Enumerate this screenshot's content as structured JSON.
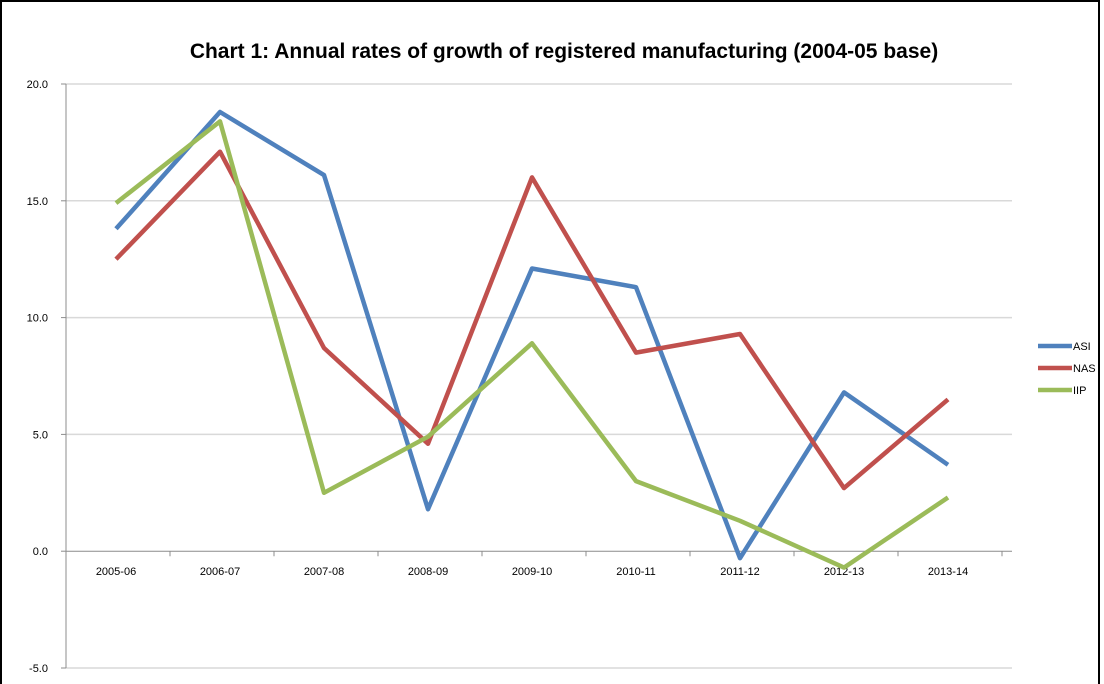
{
  "chart_data": {
    "type": "line",
    "title": "Chart 1: Annual rates of growth of registered manufacturing (2004-05 base)",
    "categories": [
      "2005-06",
      "2006-07",
      "2007-08",
      "2008-09",
      "2009-10",
      "2010-11",
      "2011-12",
      "2012-13",
      "2013-14"
    ],
    "ylim": [
      -5.0,
      20.0
    ],
    "yticks": [
      "20.0",
      "15.0",
      "10.0",
      "5.0",
      "0.0",
      "-5.0"
    ],
    "ytick_values": [
      20,
      15,
      10,
      5,
      0,
      -5
    ],
    "grid": true,
    "legend_position": "right",
    "series": [
      {
        "name": "ASI",
        "color": "#4f81bd",
        "values": [
          13.8,
          18.8,
          16.1,
          1.8,
          12.1,
          11.3,
          -0.3,
          6.8,
          3.7
        ]
      },
      {
        "name": "NAS",
        "color": "#c0504d",
        "values": [
          12.5,
          17.1,
          8.7,
          4.6,
          16.0,
          8.5,
          9.3,
          2.7,
          6.5
        ]
      },
      {
        "name": "IIP",
        "color": "#9bbb59",
        "values": [
          14.9,
          18.4,
          2.5,
          4.9,
          8.9,
          3.0,
          1.3,
          -0.7,
          2.3
        ]
      }
    ]
  }
}
